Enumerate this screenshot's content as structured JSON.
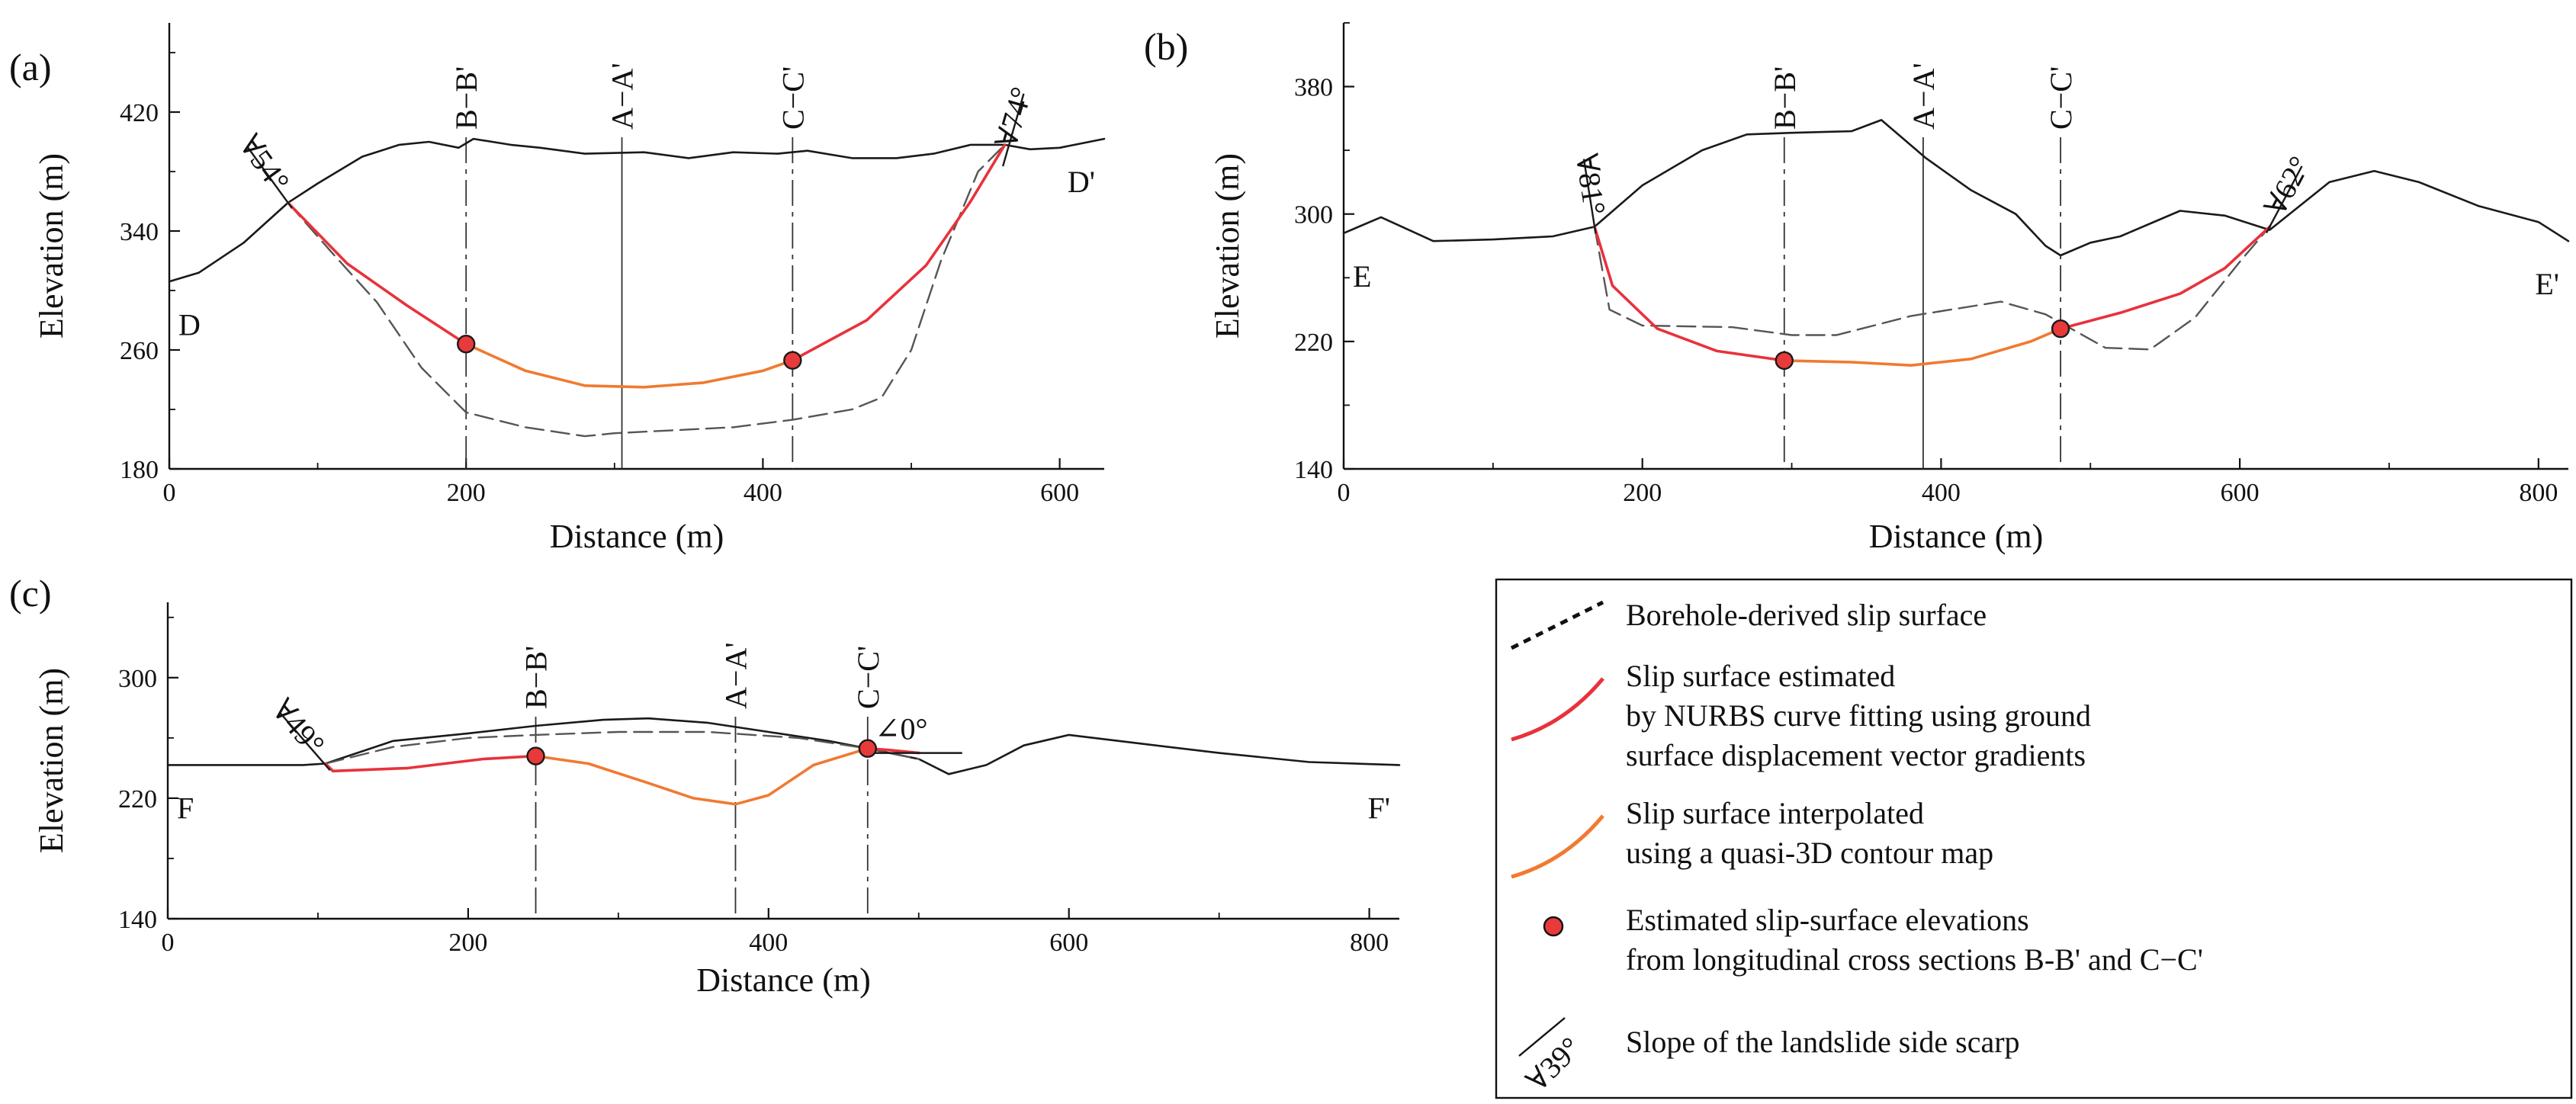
{
  "chart_data": [
    {
      "type": "line",
      "panel": "(a)",
      "xlabel": "Distance (m)",
      "ylabel": "Elevation (m)",
      "xlim": [
        0,
        630
      ],
      "ylim": [
        180,
        480
      ],
      "xticks": [
        0,
        200,
        400,
        600
      ],
      "xtick_labels": [
        "0",
        "200",
        "400",
        "600"
      ],
      "yticks": [
        180,
        260,
        340,
        420
      ],
      "ytick_labels": [
        "180",
        "260",
        "340",
        "420"
      ],
      "start_label": "D",
      "end_label": "D'",
      "sections": [
        {
          "name": "B−B'",
          "x": 200,
          "style": "dashdot"
        },
        {
          "name": "A−A'",
          "x": 305,
          "style": "solid"
        },
        {
          "name": "C−C'",
          "x": 420,
          "style": "dashdot"
        }
      ],
      "scarps": [
        {
          "label": "∀54°",
          "x": 80,
          "y": 359,
          "angle": 54,
          "side": "left"
        },
        {
          "label": "∀74°",
          "x": 563,
          "y": 388,
          "angle": 74,
          "side": "right"
        }
      ],
      "series": [
        {
          "name": "Ground surface",
          "style": "ground",
          "x": [
            0,
            20,
            50,
            80,
            100,
            130,
            155,
            175,
            195,
            205,
            230,
            250,
            280,
            320,
            350,
            380,
            410,
            430,
            460,
            490,
            515,
            540,
            563,
            580,
            600,
            630
          ],
          "y": [
            306,
            312,
            332,
            359,
            372,
            390,
            398,
            400,
            396,
            402,
            398,
            396,
            392,
            393,
            389,
            393,
            392,
            394,
            389,
            389,
            392,
            398,
            398,
            395,
            396,
            402
          ]
        },
        {
          "name": "Borehole-derived slip surface",
          "style": "borehole",
          "x": [
            80,
            110,
            140,
            170,
            200,
            240,
            280,
            300,
            340,
            380,
            420,
            460,
            480,
            500,
            520,
            545,
            563
          ],
          "y": [
            359,
            325,
            292,
            248,
            218,
            208,
            202,
            204,
            206,
            208,
            213,
            220,
            228,
            260,
            320,
            380,
            398
          ]
        },
        {
          "name": "Slip surface estimated by NURBS",
          "style": "nurbs",
          "x": [
            80,
            120,
            160,
            200
          ],
          "y": [
            359,
            318,
            290,
            264
          ]
        },
        {
          "name": "Slip surface estimated by NURBS",
          "style": "nurbs",
          "x": [
            420,
            470,
            510,
            540,
            563
          ],
          "y": [
            253,
            280,
            317,
            360,
            398
          ]
        },
        {
          "name": "Slip surface interpolated",
          "style": "interp",
          "x": [
            200,
            240,
            280,
            320,
            360,
            400,
            420
          ],
          "y": [
            264,
            246,
            236,
            235,
            238,
            246,
            253
          ]
        }
      ],
      "points": [
        {
          "x": 200,
          "y": 264
        },
        {
          "x": 420,
          "y": 253
        }
      ]
    },
    {
      "type": "line",
      "panel": "(b)",
      "xlabel": "Distance (m)",
      "ylabel": "Elevation (m)",
      "xlim": [
        0,
        820
      ],
      "ylim": [
        140,
        420
      ],
      "xticks": [
        0,
        200,
        400,
        600,
        800
      ],
      "xtick_labels": [
        "0",
        "200",
        "400",
        "600",
        "800"
      ],
      "yticks": [
        140,
        220,
        300,
        380
      ],
      "ytick_labels": [
        "140",
        "220",
        "300",
        "380"
      ],
      "start_label": "E",
      "end_label": "E'",
      "sections": [
        {
          "name": "B−B'",
          "x": 295,
          "style": "dashdot"
        },
        {
          "name": "A−A'",
          "x": 388,
          "style": "solid"
        },
        {
          "name": "C−C'",
          "x": 480,
          "style": "dashdot"
        }
      ],
      "scarps": [
        {
          "label": "∀81°",
          "x": 168,
          "y": 292,
          "angle": 81,
          "side": "left"
        },
        {
          "label": "∀62°",
          "x": 620,
          "y": 292,
          "angle": 62,
          "side": "right"
        }
      ],
      "series": [
        {
          "name": "Ground surface",
          "style": "ground",
          "x": [
            0,
            25,
            60,
            100,
            140,
            168,
            200,
            240,
            270,
            300,
            340,
            360,
            390,
            420,
            450,
            470,
            480,
            500,
            520,
            560,
            590,
            620,
            660,
            690,
            720,
            760,
            800,
            820
          ],
          "y": [
            288,
            298,
            283,
            284,
            286,
            292,
            318,
            340,
            350,
            351,
            352,
            359,
            335,
            315,
            300,
            280,
            274,
            282,
            286,
            302,
            299,
            290,
            320,
            327,
            320,
            305,
            295,
            283
          ]
        },
        {
          "name": "Borehole-derived slip surface",
          "style": "borehole",
          "x": [
            168,
            178,
            200,
            260,
            300,
            330,
            380,
            440,
            470,
            510,
            540,
            570,
            600,
            620
          ],
          "y": [
            292,
            240,
            230,
            229,
            224,
            224,
            236,
            245,
            237,
            216,
            215,
            235,
            270,
            292
          ]
        },
        {
          "name": "Slip surface estimated by NURBS",
          "style": "nurbs",
          "x": [
            168,
            180,
            210,
            250,
            295
          ],
          "y": [
            292,
            255,
            228,
            214,
            208
          ]
        },
        {
          "name": "Slip surface estimated by NURBS",
          "style": "nurbs",
          "x": [
            480,
            520,
            560,
            590,
            620
          ],
          "y": [
            228,
            238,
            250,
            266,
            292
          ]
        },
        {
          "name": "Slip surface interpolated",
          "style": "interp",
          "x": [
            295,
            340,
            380,
            420,
            460,
            480
          ],
          "y": [
            208,
            207,
            205,
            209,
            220,
            228
          ]
        }
      ],
      "points": [
        {
          "x": 295,
          "y": 208
        },
        {
          "x": 480,
          "y": 228
        }
      ]
    },
    {
      "type": "line",
      "panel": "(c)",
      "xlabel": "Distance (m)",
      "ylabel": "Elevation (m)",
      "xlim": [
        0,
        820
      ],
      "ylim": [
        140,
        350
      ],
      "xticks": [
        0,
        200,
        400,
        600,
        800
      ],
      "xtick_labels": [
        "0",
        "200",
        "400",
        "600",
        "800"
      ],
      "yticks": [
        140,
        220,
        300
      ],
      "ytick_labels": [
        "140",
        "220",
        "300"
      ],
      "start_label": "F",
      "end_label": "F'",
      "sections": [
        {
          "name": "B−B'",
          "x": 245,
          "style": "dashdot"
        },
        {
          "name": "A−A'",
          "x": 378,
          "style": "dashdot"
        },
        {
          "name": "C−C'",
          "x": 466,
          "style": "dashdot"
        }
      ],
      "scarps": [
        {
          "label": "∀49°",
          "x": 105,
          "y": 242,
          "angle": 49,
          "side": "left"
        },
        {
          "label": "∠0°",
          "x": 468,
          "y": 250,
          "angle": 0,
          "side": "right"
        }
      ],
      "series": [
        {
          "name": "Ground surface",
          "style": "ground",
          "x": [
            0,
            50,
            90,
            105,
            150,
            200,
            245,
            290,
            320,
            360,
            400,
            440,
            466,
            500,
            520,
            545,
            570,
            600,
            650,
            700,
            760,
            820
          ],
          "y": [
            242,
            242,
            242,
            243,
            258,
            263,
            268,
            272,
            273,
            270,
            264,
            258,
            253,
            246,
            236,
            242,
            255,
            262,
            256,
            250,
            244,
            242
          ]
        },
        {
          "name": "Borehole-derived slip surface",
          "style": "borehole",
          "x": [
            105,
            150,
            200,
            245,
            300,
            360,
            420,
            466,
            500
          ],
          "y": [
            243,
            254,
            260,
            262,
            264,
            264,
            260,
            253,
            246
          ]
        },
        {
          "name": "Slip surface estimated by NURBS",
          "style": "nurbs",
          "x": [
            105,
            110,
            160,
            210,
            245
          ],
          "y": [
            243,
            238,
            240,
            246,
            248
          ]
        },
        {
          "name": "Slip surface estimated by NURBS",
          "style": "nurbs",
          "x": [
            466,
            480,
            500
          ],
          "y": [
            253,
            252,
            250
          ]
        },
        {
          "name": "Slip surface interpolated",
          "style": "interp",
          "x": [
            245,
            280,
            320,
            350,
            378,
            400,
            430,
            466
          ],
          "y": [
            248,
            243,
            230,
            220,
            216,
            222,
            242,
            253
          ]
        }
      ],
      "points": [
        {
          "x": 245,
          "y": 248
        },
        {
          "x": 466,
          "y": 253
        }
      ]
    }
  ],
  "legend": {
    "items": [
      {
        "kind": "borehole",
        "lines": [
          "Borehole-derived slip surface"
        ]
      },
      {
        "kind": "nurbs",
        "lines": [
          "Slip surface estimated",
          "by NURBS curve fitting using ground",
          "surface displacement vector gradients"
        ]
      },
      {
        "kind": "interp",
        "lines": [
          "Slip surface interpolated",
          "using a quasi-3D contour map"
        ]
      },
      {
        "kind": "point",
        "lines": [
          "Estimated slip-surface elevations",
          "from longitudinal cross sections B-B' and C−C'"
        ]
      },
      {
        "kind": "scarp",
        "symbol": "∀39°",
        "lines": [
          "Slope of the landslide side scarp"
        ]
      }
    ]
  },
  "colors": {
    "ground": "#1a1a1a",
    "borehole": "#555555",
    "nurbs": "#e8323c",
    "interp": "#f07a30",
    "point_fill": "#e83a3a",
    "axis": "#111111"
  }
}
